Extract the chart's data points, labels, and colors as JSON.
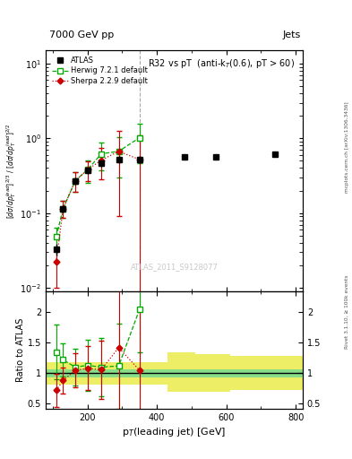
{
  "title_top": "7000 GeV pp",
  "title_right": "Jets",
  "plot_title": "R32 vs pT  (anti-k_{T}(0.6), pT > 60)",
  "ylabel_main": "[d\\sigma/dp_T lead]^{2/3} / [d\\sigma/dp_T lead]^{2/2}",
  "ylabel_ratio": "Ratio to ATLAS",
  "xlabel": "p_{T}(leading jet) [GeV]",
  "right_label": "Rivet 3.1.10, ≥ 100k events",
  "right_label2": "mcplots.cern.ch [arXiv:1306.3436]",
  "watermark": "ATLAS_2011_S9128077",
  "vline_x": 350,
  "atlas_x": [
    110,
    130,
    165,
    200,
    240,
    290,
    350,
    480,
    570,
    740
  ],
  "atlas_y": [
    0.033,
    0.115,
    0.27,
    0.37,
    0.47,
    0.52,
    0.52,
    0.57,
    0.57,
    0.62
  ],
  "atlas_yerr": [
    0.006,
    0.012,
    0.03,
    0.04,
    0.05,
    0.055,
    0.055,
    0.0,
    0.0,
    0.0
  ],
  "herwig_x": [
    110,
    130,
    165,
    200,
    240,
    290,
    350
  ],
  "herwig_y": [
    0.048,
    0.115,
    0.27,
    0.38,
    0.62,
    0.67,
    1.02
  ],
  "herwig_yerr_lo": [
    0.015,
    0.03,
    0.08,
    0.13,
    0.25,
    0.37,
    0.55
  ],
  "herwig_yerr_hi": [
    0.015,
    0.03,
    0.08,
    0.13,
    0.25,
    0.37,
    0.55
  ],
  "sherpa_x": [
    110,
    130,
    165,
    200,
    240,
    290,
    350
  ],
  "sherpa_y": [
    0.022,
    0.115,
    0.27,
    0.38,
    0.51,
    0.67,
    0.52
  ],
  "sherpa_yerr_lo": [
    0.012,
    0.03,
    0.08,
    0.11,
    0.23,
    0.58,
    0.58
  ],
  "sherpa_yerr_hi": [
    0.012,
    0.03,
    0.08,
    0.11,
    0.23,
    0.58,
    0.58
  ],
  "ratio_herwig_x": [
    110,
    130,
    165,
    200,
    240,
    290,
    350
  ],
  "ratio_herwig_y": [
    1.35,
    1.22,
    1.1,
    1.13,
    1.1,
    1.12,
    2.05
  ],
  "ratio_herwig_yerr_lo": [
    0.45,
    0.27,
    0.3,
    0.42,
    0.48,
    0.7,
    0.7
  ],
  "ratio_herwig_yerr_hi": [
    0.45,
    0.27,
    0.3,
    0.42,
    0.48,
    0.7,
    0.7
  ],
  "ratio_sherpa_x": [
    110,
    130,
    165,
    200,
    240,
    290,
    350
  ],
  "ratio_sherpa_y": [
    0.72,
    0.88,
    1.05,
    1.08,
    1.06,
    1.42,
    1.05
  ],
  "ratio_sherpa_yerr_lo": [
    0.27,
    0.22,
    0.28,
    0.36,
    0.48,
    1.2,
    1.0
  ],
  "ratio_sherpa_yerr_hi": [
    0.27,
    0.22,
    0.28,
    0.36,
    0.48,
    1.2,
    1.0
  ],
  "band_x_edges": [
    80,
    130,
    165,
    200,
    240,
    290,
    350,
    430,
    510,
    610,
    820
  ],
  "band_green_lo": [
    0.93,
    0.93,
    0.93,
    0.93,
    0.93,
    0.93,
    0.93,
    0.93,
    0.93,
    0.93,
    0.93
  ],
  "band_green_hi": [
    1.07,
    1.07,
    1.07,
    1.07,
    1.07,
    1.07,
    1.07,
    1.07,
    1.07,
    1.07,
    1.07
  ],
  "band_yellow_lo": [
    0.82,
    0.82,
    0.82,
    0.82,
    0.82,
    0.82,
    0.82,
    0.7,
    0.7,
    0.72,
    0.75
  ],
  "band_yellow_hi": [
    1.18,
    1.18,
    1.18,
    1.18,
    1.18,
    1.18,
    1.18,
    1.35,
    1.32,
    1.28,
    1.22
  ],
  "color_atlas": "#000000",
  "color_herwig": "#00aa00",
  "color_sherpa": "#cc0000",
  "color_band_green": "#88dd88",
  "color_band_yellow": "#eeee66",
  "xlim": [
    80,
    820
  ],
  "ylim_main": [
    0.009,
    15
  ],
  "ylim_ratio": [
    0.42,
    2.35
  ]
}
